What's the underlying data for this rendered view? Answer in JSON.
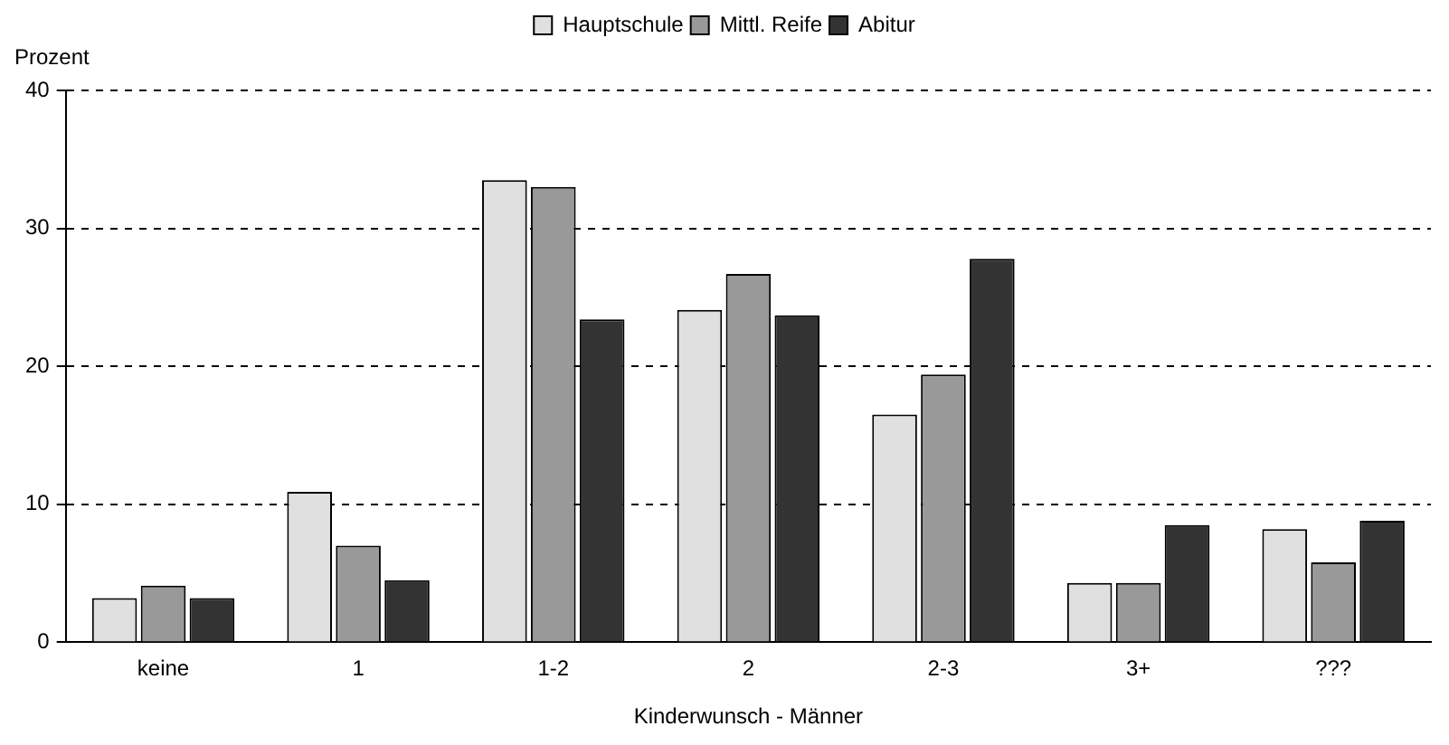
{
  "chart_data": {
    "type": "bar",
    "xlabel": "Kinderwunsch - Männer",
    "ylabel": "Prozent",
    "categories": [
      "keine",
      "1",
      "1-2",
      "2",
      "2-3",
      "3+",
      "???"
    ],
    "series": [
      {
        "name": "Hauptschule",
        "color": "#e0e0e0",
        "values": [
          3.2,
          10.9,
          33.5,
          24.1,
          16.5,
          4.3,
          8.2
        ]
      },
      {
        "name": "Mittl. Reife",
        "color": "#999999",
        "values": [
          4.1,
          7.0,
          33.0,
          26.7,
          19.4,
          4.3,
          5.8
        ]
      },
      {
        "name": "Abitur",
        "color": "#333333",
        "values": [
          3.2,
          4.5,
          23.4,
          23.7,
          27.8,
          8.5,
          8.8
        ]
      }
    ],
    "ylim": [
      0,
      40
    ],
    "yticks": [
      0,
      10,
      20,
      30,
      40
    ],
    "grid": "y",
    "legend": "top"
  }
}
